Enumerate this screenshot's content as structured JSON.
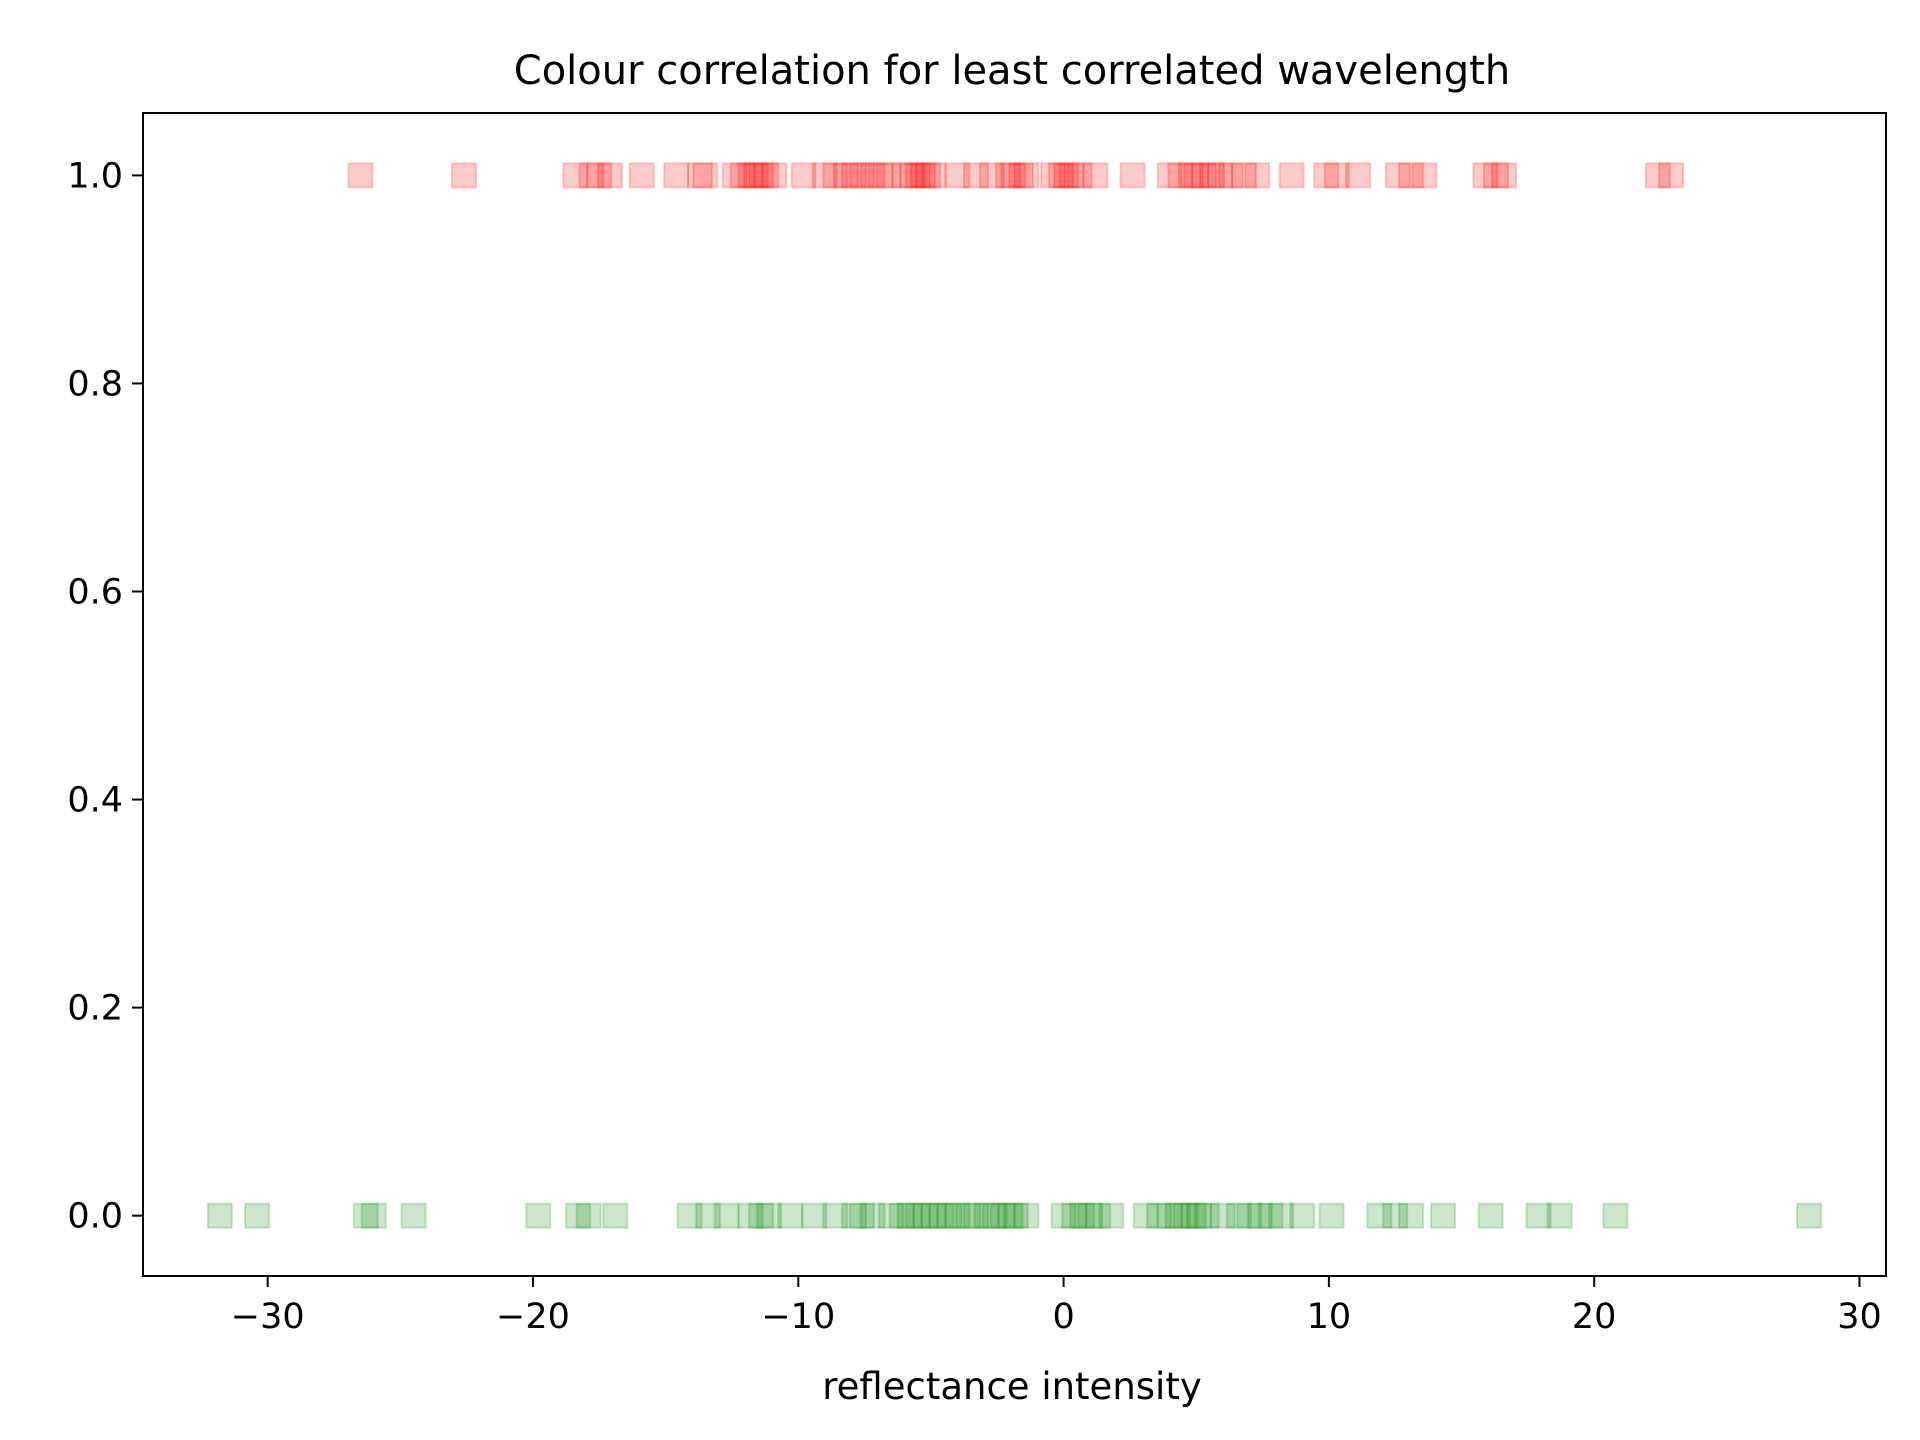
{
  "chart_data": {
    "type": "scatter",
    "title": "Colour correlation for least correlated wavelength",
    "xlabel": "reflectance intensity",
    "ylabel": "",
    "xlim": [
      -34.7,
      31.0
    ],
    "ylim": [
      -0.058,
      1.06
    ],
    "xticks": [
      -30,
      -20,
      -10,
      0,
      10,
      20,
      30
    ],
    "xtick_labels": [
      "−30",
      "−20",
      "−10",
      "0",
      "10",
      "20",
      "30"
    ],
    "yticks": [
      0.0,
      0.2,
      0.4,
      0.6,
      0.8,
      1.0
    ],
    "ytick_labels": [
      "0.0",
      "0.2",
      "0.4",
      "0.6",
      "0.8",
      "1.0"
    ],
    "grid": false,
    "marker": "square",
    "marker_alpha": 0.2,
    "series": [
      {
        "color": "#ff0000",
        "y": 1.0,
        "x": [
          -26.5,
          -22.6,
          -18.4,
          -17.8,
          -17.5,
          -17.1,
          -15.9,
          -14.6,
          -13.7,
          -13.5,
          -12.4,
          -12.1,
          -11.8,
          -11.6,
          -11.4,
          -11.2,
          -10.9,
          -9.8,
          -9.0,
          -8.6,
          -8.2,
          -7.9,
          -7.6,
          -7.2,
          -6.9,
          -6.6,
          -6.0,
          -5.7,
          -5.5,
          -5.3,
          -5.1,
          -4.9,
          -4.0,
          -3.3,
          -2.7,
          -2.1,
          -1.9,
          -1.6,
          -1.4,
          -0.4,
          -0.1,
          0.1,
          0.3,
          0.6,
          1.2,
          2.6,
          4.0,
          4.4,
          4.8,
          5.0,
          5.3,
          5.6,
          5.9,
          6.3,
          6.8,
          7.3,
          8.6,
          9.9,
          10.3,
          11.1,
          12.6,
          13.1,
          13.6,
          15.9,
          16.3,
          16.6,
          22.4,
          22.9
        ]
      },
      {
        "color": "#008000",
        "y": 0.0,
        "x": [
          -31.8,
          -30.4,
          -26.3,
          -26.0,
          -24.5,
          -19.8,
          -18.3,
          -17.9,
          -16.9,
          -14.1,
          -13.4,
          -12.7,
          -11.8,
          -11.4,
          -11.1,
          -10.3,
          -9.4,
          -8.6,
          -7.9,
          -7.6,
          -7.2,
          -6.5,
          -6.1,
          -5.8,
          -5.5,
          -5.2,
          -4.9,
          -4.6,
          -4.3,
          -4.0,
          -3.6,
          -3.3,
          -2.9,
          -2.6,
          -2.3,
          -2.0,
          -1.8,
          -1.4,
          0.0,
          0.4,
          0.7,
          1.0,
          1.3,
          1.8,
          3.1,
          3.6,
          4.0,
          4.3,
          4.6,
          4.9,
          5.1,
          5.4,
          6.0,
          6.6,
          7.0,
          7.4,
          7.8,
          8.2,
          9.0,
          10.1,
          11.9,
          12.5,
          13.1,
          14.3,
          16.1,
          17.9,
          18.7,
          20.8,
          28.1
        ]
      }
    ]
  }
}
